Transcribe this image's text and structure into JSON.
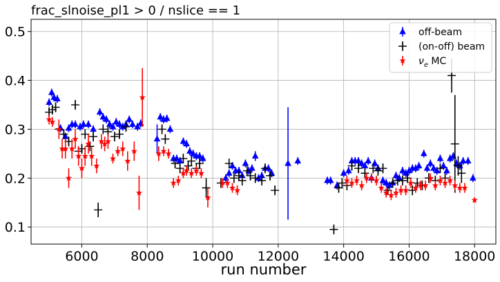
{
  "chart_data": {
    "type": "scatter",
    "title": "frac_slnoise_pl1 > 0 / nslice == 1",
    "xlabel": "run number",
    "ylabel": "",
    "xlim": [
      4450,
      18650
    ],
    "ylim": [
      0.065,
      0.525
    ],
    "xticks": [
      6000,
      8000,
      10000,
      12000,
      14000,
      16000,
      18000
    ],
    "yticks": [
      0.1,
      0.2,
      0.3,
      0.4,
      0.5
    ],
    "xtick_labels": [
      "6000",
      "8000",
      "10000",
      "12000",
      "14000",
      "16000",
      "18000"
    ],
    "ytick_labels": [
      "0.1",
      "0.2",
      "0.3",
      "0.4",
      "0.5"
    ],
    "grid": true,
    "legend_position": "top-right",
    "series": [
      {
        "name": "off-beam",
        "marker": "triangle",
        "color": "#0000ff",
        "points": [
          [
            5000,
            0.355,
            0.008
          ],
          [
            5080,
            0.375,
            0.008
          ],
          [
            5150,
            0.365,
            0.008
          ],
          [
            5250,
            0.362,
            0.008
          ],
          [
            5350,
            0.302,
            0.008
          ],
          [
            5500,
            0.285,
            0.008
          ],
          [
            5600,
            0.302,
            0.008
          ],
          [
            5700,
            0.31,
            0.008
          ],
          [
            5800,
            0.31,
            0.008
          ],
          [
            5950,
            0.305,
            0.008
          ],
          [
            6050,
            0.31,
            0.008
          ],
          [
            6200,
            0.31,
            0.008
          ],
          [
            6350,
            0.3,
            0.008
          ],
          [
            6550,
            0.335,
            0.008
          ],
          [
            6650,
            0.325,
            0.008
          ],
          [
            6750,
            0.32,
            0.008
          ],
          [
            6850,
            0.31,
            0.008
          ],
          [
            6950,
            0.305,
            0.008
          ],
          [
            7050,
            0.315,
            0.008
          ],
          [
            7150,
            0.31,
            0.008
          ],
          [
            7250,
            0.305,
            0.008
          ],
          [
            7350,
            0.31,
            0.008
          ],
          [
            7450,
            0.32,
            0.008
          ],
          [
            7550,
            0.31,
            0.008
          ],
          [
            7700,
            0.305,
            0.008
          ],
          [
            7800,
            0.312,
            0.008
          ],
          [
            8300,
            0.28,
            0.03
          ],
          [
            8400,
            0.325,
            0.008
          ],
          [
            8500,
            0.32,
            0.008
          ],
          [
            8600,
            0.322,
            0.008
          ],
          [
            8700,
            0.3,
            0.008
          ],
          [
            8800,
            0.24,
            0.008
          ],
          [
            8900,
            0.24,
            0.008
          ],
          [
            9000,
            0.235,
            0.008
          ],
          [
            9100,
            0.275,
            0.008
          ],
          [
            9200,
            0.27,
            0.008
          ],
          [
            9300,
            0.255,
            0.008
          ],
          [
            9400,
            0.25,
            0.008
          ],
          [
            9500,
            0.245,
            0.008
          ],
          [
            9600,
            0.245,
            0.008
          ],
          [
            9700,
            0.24,
            0.008
          ],
          [
            10400,
            0.2,
            0.008
          ],
          [
            10500,
            0.21,
            0.008
          ],
          [
            10600,
            0.225,
            0.008
          ],
          [
            10700,
            0.215,
            0.008
          ],
          [
            10800,
            0.215,
            0.008
          ],
          [
            10900,
            0.205,
            0.008
          ],
          [
            11000,
            0.23,
            0.008
          ],
          [
            11100,
            0.215,
            0.008
          ],
          [
            11200,
            0.22,
            0.008
          ],
          [
            11300,
            0.245,
            0.01
          ],
          [
            11400,
            0.2,
            0.008
          ],
          [
            11500,
            0.205,
            0.008
          ],
          [
            11600,
            0.22,
            0.008
          ],
          [
            11700,
            0.22,
            0.008
          ],
          [
            11800,
            0.21,
            0.008
          ],
          [
            12300,
            0.23,
            0.115
          ],
          [
            12600,
            0.235,
            0.008
          ],
          [
            13500,
            0.195,
            0.008
          ],
          [
            13600,
            0.195,
            0.008
          ],
          [
            13800,
            0.185,
            0.008
          ],
          [
            14000,
            0.21,
            0.008
          ],
          [
            14150,
            0.215,
            0.008
          ],
          [
            14250,
            0.235,
            0.008
          ],
          [
            14350,
            0.235,
            0.008
          ],
          [
            14450,
            0.235,
            0.008
          ],
          [
            14550,
            0.23,
            0.008
          ],
          [
            14650,
            0.225,
            0.008
          ],
          [
            14750,
            0.235,
            0.008
          ],
          [
            14850,
            0.2,
            0.008
          ],
          [
            14950,
            0.23,
            0.008
          ],
          [
            15050,
            0.22,
            0.008
          ],
          [
            15200,
            0.195,
            0.008
          ],
          [
            15300,
            0.19,
            0.008
          ],
          [
            15400,
            0.185,
            0.008
          ],
          [
            15500,
            0.19,
            0.008
          ],
          [
            15600,
            0.205,
            0.008
          ],
          [
            15700,
            0.2,
            0.008
          ],
          [
            15800,
            0.215,
            0.008
          ],
          [
            15900,
            0.21,
            0.008
          ],
          [
            16000,
            0.215,
            0.008
          ],
          [
            16100,
            0.22,
            0.008
          ],
          [
            16200,
            0.22,
            0.008
          ],
          [
            16300,
            0.225,
            0.008
          ],
          [
            16450,
            0.25,
            0.008
          ],
          [
            16550,
            0.22,
            0.008
          ],
          [
            16650,
            0.23,
            0.008
          ],
          [
            16750,
            0.22,
            0.008
          ],
          [
            16850,
            0.215,
            0.008
          ],
          [
            16950,
            0.24,
            0.008
          ],
          [
            17050,
            0.225,
            0.008
          ],
          [
            17150,
            0.215,
            0.008
          ],
          [
            17250,
            0.24,
            0.008
          ],
          [
            17350,
            0.245,
            0.008
          ],
          [
            17450,
            0.23,
            0.008
          ],
          [
            17550,
            0.225,
            0.008
          ],
          [
            17650,
            0.235,
            0.008
          ],
          [
            17800,
            0.235,
            0.008
          ],
          [
            17950,
            0.2,
            0.008
          ]
        ]
      },
      {
        "name": "(on-off) beam",
        "marker": "cross",
        "color": "#000000",
        "points": [
          [
            5000,
            0.335,
            0.01
          ],
          [
            5100,
            0.34,
            0.01
          ],
          [
            5200,
            0.345,
            0.01
          ],
          [
            5300,
            0.3,
            0.01
          ],
          [
            5450,
            0.29,
            0.01
          ],
          [
            5600,
            0.275,
            0.01
          ],
          [
            5800,
            0.35,
            0.01
          ],
          [
            5900,
            0.255,
            0.01
          ],
          [
            6000,
            0.26,
            0.01
          ],
          [
            6100,
            0.29,
            0.01
          ],
          [
            6250,
            0.265,
            0.01
          ],
          [
            6350,
            0.285,
            0.01
          ],
          [
            6500,
            0.135,
            0.015
          ],
          [
            6650,
            0.3,
            0.01
          ],
          [
            6800,
            0.295,
            0.01
          ],
          [
            7000,
            0.285,
            0.01
          ],
          [
            7150,
            0.29,
            0.01
          ],
          [
            7350,
            0.305,
            0.01
          ],
          [
            8450,
            0.3,
            0.01
          ],
          [
            8550,
            0.28,
            0.01
          ],
          [
            8850,
            0.23,
            0.01
          ],
          [
            9000,
            0.22,
            0.01
          ],
          [
            9100,
            0.24,
            0.01
          ],
          [
            9250,
            0.225,
            0.01
          ],
          [
            9350,
            0.235,
            0.01
          ],
          [
            9500,
            0.22,
            0.01
          ],
          [
            9600,
            0.23,
            0.01
          ],
          [
            9800,
            0.18,
            0.02
          ],
          [
            10250,
            0.19,
            0.01
          ],
          [
            10500,
            0.23,
            0.01
          ],
          [
            10650,
            0.2,
            0.01
          ],
          [
            10800,
            0.205,
            0.01
          ],
          [
            10900,
            0.195,
            0.01
          ],
          [
            11050,
            0.215,
            0.01
          ],
          [
            11150,
            0.205,
            0.01
          ],
          [
            11300,
            0.2,
            0.01
          ],
          [
            11500,
            0.195,
            0.01
          ],
          [
            11600,
            0.22,
            0.01
          ],
          [
            11750,
            0.205,
            0.01
          ],
          [
            11900,
            0.175,
            0.01
          ],
          [
            13700,
            0.095,
            0.01
          ],
          [
            13850,
            0.18,
            0.01
          ],
          [
            13950,
            0.19,
            0.01
          ],
          [
            14100,
            0.185,
            0.01
          ],
          [
            14250,
            0.225,
            0.01
          ],
          [
            14450,
            0.22,
            0.01
          ],
          [
            14650,
            0.21,
            0.01
          ],
          [
            14900,
            0.22,
            0.01
          ],
          [
            15050,
            0.215,
            0.01
          ],
          [
            15200,
            0.22,
            0.01
          ],
          [
            15350,
            0.175,
            0.01
          ],
          [
            15500,
            0.19,
            0.01
          ],
          [
            15650,
            0.195,
            0.01
          ],
          [
            15800,
            0.195,
            0.01
          ],
          [
            15950,
            0.2,
            0.01
          ],
          [
            16100,
            0.175,
            0.01
          ],
          [
            16250,
            0.19,
            0.01
          ],
          [
            16400,
            0.185,
            0.01
          ],
          [
            16600,
            0.2,
            0.01
          ],
          [
            16800,
            0.195,
            0.01
          ],
          [
            16950,
            0.22,
            0.01
          ],
          [
            17100,
            0.2,
            0.01
          ],
          [
            17300,
            0.41,
            0.035
          ],
          [
            17400,
            0.27,
            0.1
          ],
          [
            17500,
            0.225,
            0.02
          ],
          [
            17600,
            0.21,
            0.02
          ]
        ]
      },
      {
        "name": "$\\nu_e$ MC",
        "legend_label": "ν",
        "legend_sub": "e",
        "legend_suffix": " MC",
        "marker": "star",
        "color": "#ff0000",
        "points": [
          [
            5000,
            0.32,
            0.01
          ],
          [
            5100,
            0.315,
            0.01
          ],
          [
            5300,
            0.3,
            0.02
          ],
          [
            5400,
            0.26,
            0.02
          ],
          [
            5500,
            0.26,
            0.02
          ],
          [
            5600,
            0.2,
            0.02
          ],
          [
            5700,
            0.26,
            0.02
          ],
          [
            5800,
            0.28,
            0.02
          ],
          [
            5900,
            0.245,
            0.02
          ],
          [
            6000,
            0.22,
            0.02
          ],
          [
            6100,
            0.245,
            0.02
          ],
          [
            6200,
            0.27,
            0.02
          ],
          [
            6300,
            0.245,
            0.02
          ],
          [
            6450,
            0.225,
            0.015
          ],
          [
            6600,
            0.275,
            0.015
          ],
          [
            6700,
            0.27,
            0.015
          ],
          [
            6800,
            0.275,
            0.015
          ],
          [
            6950,
            0.24,
            0.01
          ],
          [
            7100,
            0.255,
            0.01
          ],
          [
            7250,
            0.26,
            0.015
          ],
          [
            7400,
            0.235,
            0.02
          ],
          [
            7600,
            0.255,
            0.02
          ],
          [
            7750,
            0.17,
            0.035
          ],
          [
            7850,
            0.365,
            0.06
          ],
          [
            8350,
            0.25,
            0.015
          ],
          [
            8500,
            0.255,
            0.01
          ],
          [
            8650,
            0.25,
            0.01
          ],
          [
            8800,
            0.19,
            0.01
          ],
          [
            8950,
            0.195,
            0.01
          ],
          [
            9100,
            0.21,
            0.01
          ],
          [
            9200,
            0.215,
            0.01
          ],
          [
            9350,
            0.21,
            0.01
          ],
          [
            9500,
            0.215,
            0.01
          ],
          [
            9650,
            0.21,
            0.01
          ],
          [
            9850,
            0.16,
            0.02
          ],
          [
            10300,
            0.19,
            0.01
          ],
          [
            10450,
            0.19,
            0.01
          ],
          [
            10600,
            0.18,
            0.01
          ],
          [
            10750,
            0.175,
            0.01
          ],
          [
            14100,
            0.195,
            0.01
          ],
          [
            14250,
            0.19,
            0.01
          ],
          [
            14400,
            0.195,
            0.01
          ],
          [
            14550,
            0.185,
            0.01
          ],
          [
            14700,
            0.2,
            0.01
          ],
          [
            14850,
            0.2,
            0.01
          ],
          [
            15000,
            0.195,
            0.01
          ],
          [
            15150,
            0.18,
            0.01
          ],
          [
            15300,
            0.17,
            0.01
          ],
          [
            15450,
            0.165,
            0.01
          ],
          [
            15600,
            0.17,
            0.01
          ],
          [
            15750,
            0.175,
            0.01
          ],
          [
            15900,
            0.175,
            0.01
          ],
          [
            16050,
            0.19,
            0.01
          ],
          [
            16200,
            0.18,
            0.01
          ],
          [
            16350,
            0.185,
            0.01
          ],
          [
            16500,
            0.185,
            0.01
          ],
          [
            16650,
            0.2,
            0.01
          ],
          [
            16800,
            0.185,
            0.01
          ],
          [
            16950,
            0.195,
            0.01
          ],
          [
            17100,
            0.19,
            0.01
          ],
          [
            17250,
            0.195,
            0.01
          ],
          [
            17400,
            0.185,
            0.01
          ],
          [
            17550,
            0.18,
            0.01
          ],
          [
            17700,
            0.18,
            0.01
          ],
          [
            18000,
            0.155,
            0.005
          ]
        ]
      }
    ]
  }
}
